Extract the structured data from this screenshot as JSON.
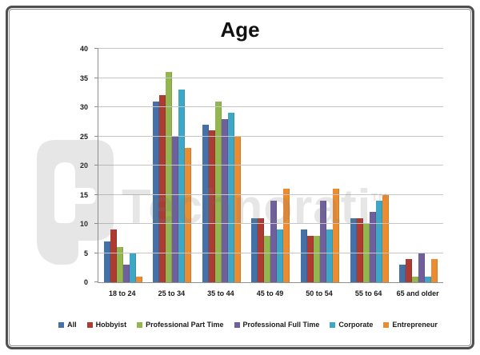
{
  "watermark": {
    "text": "Technorati",
    "tm": "TM"
  },
  "chart_data": {
    "type": "bar",
    "title": "Age",
    "categories": [
      "18 to 24",
      "25 to 34",
      "35 to 44",
      "45 to 49",
      "50 to 54",
      "55 to 64",
      "65 and older"
    ],
    "series": [
      {
        "name": "All",
        "color": "#4472a8",
        "values": [
          7,
          31,
          27,
          11,
          9,
          11,
          3
        ]
      },
      {
        "name": "Hobbyist",
        "color": "#ae3b32",
        "values": [
          9,
          32,
          26,
          11,
          8,
          11,
          4
        ]
      },
      {
        "name": "Professional Part Time",
        "color": "#94b64e",
        "values": [
          6,
          36,
          31,
          8,
          8,
          10,
          1
        ]
      },
      {
        "name": "Professional Full Time",
        "color": "#6f5f9c",
        "values": [
          3,
          25,
          28,
          14,
          14,
          12,
          5
        ]
      },
      {
        "name": "Corporate",
        "color": "#3ea7c6",
        "values": [
          5,
          33,
          29,
          9,
          9,
          14,
          1
        ]
      },
      {
        "name": "Entrepreneur",
        "color": "#ec8c30",
        "values": [
          1,
          23,
          25,
          16,
          16,
          15,
          4
        ]
      }
    ],
    "ylim": [
      0,
      40
    ],
    "ytick_step": 5,
    "xlabel": "",
    "ylabel": "",
    "grid": true,
    "legend_position": "bottom"
  }
}
